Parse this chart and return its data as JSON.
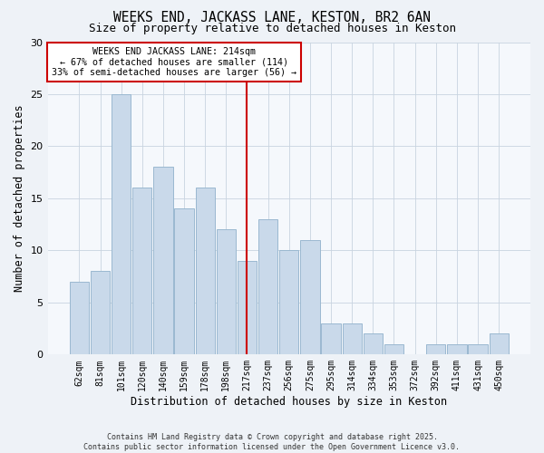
{
  "title": "WEEKS END, JACKASS LANE, KESTON, BR2 6AN",
  "subtitle": "Size of property relative to detached houses in Keston",
  "xlabel": "Distribution of detached houses by size in Keston",
  "ylabel": "Number of detached properties",
  "bar_labels": [
    "62sqm",
    "81sqm",
    "101sqm",
    "120sqm",
    "140sqm",
    "159sqm",
    "178sqm",
    "198sqm",
    "217sqm",
    "237sqm",
    "256sqm",
    "275sqm",
    "295sqm",
    "314sqm",
    "334sqm",
    "353sqm",
    "372sqm",
    "392sqm",
    "411sqm",
    "431sqm",
    "450sqm"
  ],
  "bar_values": [
    7,
    8,
    25,
    16,
    18,
    14,
    16,
    12,
    9,
    13,
    10,
    11,
    3,
    3,
    2,
    1,
    0,
    1,
    1,
    1,
    2
  ],
  "bar_color": "#c9d9ea",
  "bar_edge_color": "#9ab8d0",
  "vline_index": 8,
  "vline_color": "#cc0000",
  "annotation_title": "WEEKS END JACKASS LANE: 214sqm",
  "annotation_line1": "← 67% of detached houses are smaller (114)",
  "annotation_line2": "33% of semi-detached houses are larger (56) →",
  "annotation_box_edge": "#cc0000",
  "ylim": [
    0,
    30
  ],
  "yticks": [
    0,
    5,
    10,
    15,
    20,
    25,
    30
  ],
  "footer1": "Contains HM Land Registry data © Crown copyright and database right 2025.",
  "footer2": "Contains public sector information licensed under the Open Government Licence v3.0.",
  "bg_color": "#eef2f7",
  "plot_bg_color": "#f5f8fc"
}
